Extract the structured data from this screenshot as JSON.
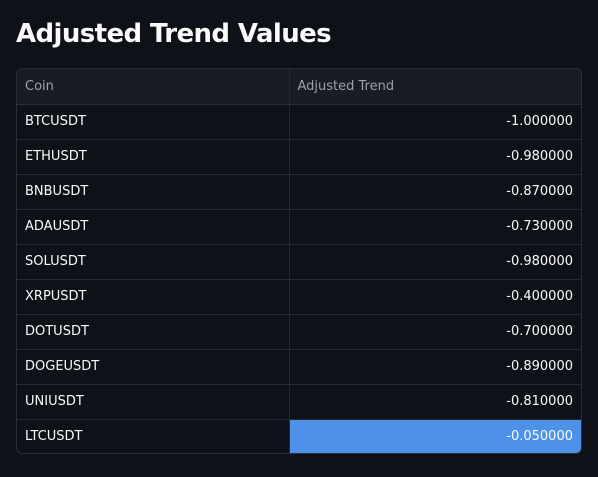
{
  "page": {
    "title": "Adjusted Trend Values"
  },
  "table": {
    "headers": [
      "Coin",
      "Adjusted Trend"
    ],
    "rows": [
      {
        "coin": "BTCUSDT",
        "trend": "-1.000000"
      },
      {
        "coin": "ETHUSDT",
        "trend": "-0.980000"
      },
      {
        "coin": "BNBUSDT",
        "trend": "-0.870000"
      },
      {
        "coin": "ADAUSDT",
        "trend": "-0.730000"
      },
      {
        "coin": "SOLUSDT",
        "trend": "-0.980000"
      },
      {
        "coin": "XRPUSDT",
        "trend": "-0.400000"
      },
      {
        "coin": "DOTUSDT",
        "trend": "-0.700000"
      },
      {
        "coin": "DOGEUSDT",
        "trend": "-0.890000"
      },
      {
        "coin": "UNIUSDT",
        "trend": "-0.810000"
      },
      {
        "coin": "LTCUSDT",
        "trend": "-0.050000"
      }
    ],
    "highlighted_row_coin": "LTCUSDT"
  },
  "colors": {
    "background": "#0e1117",
    "header_background": "#1a1c24",
    "highlight": "#4d91e8",
    "text": "#fafafa",
    "header_text": "#9ea0a8"
  }
}
